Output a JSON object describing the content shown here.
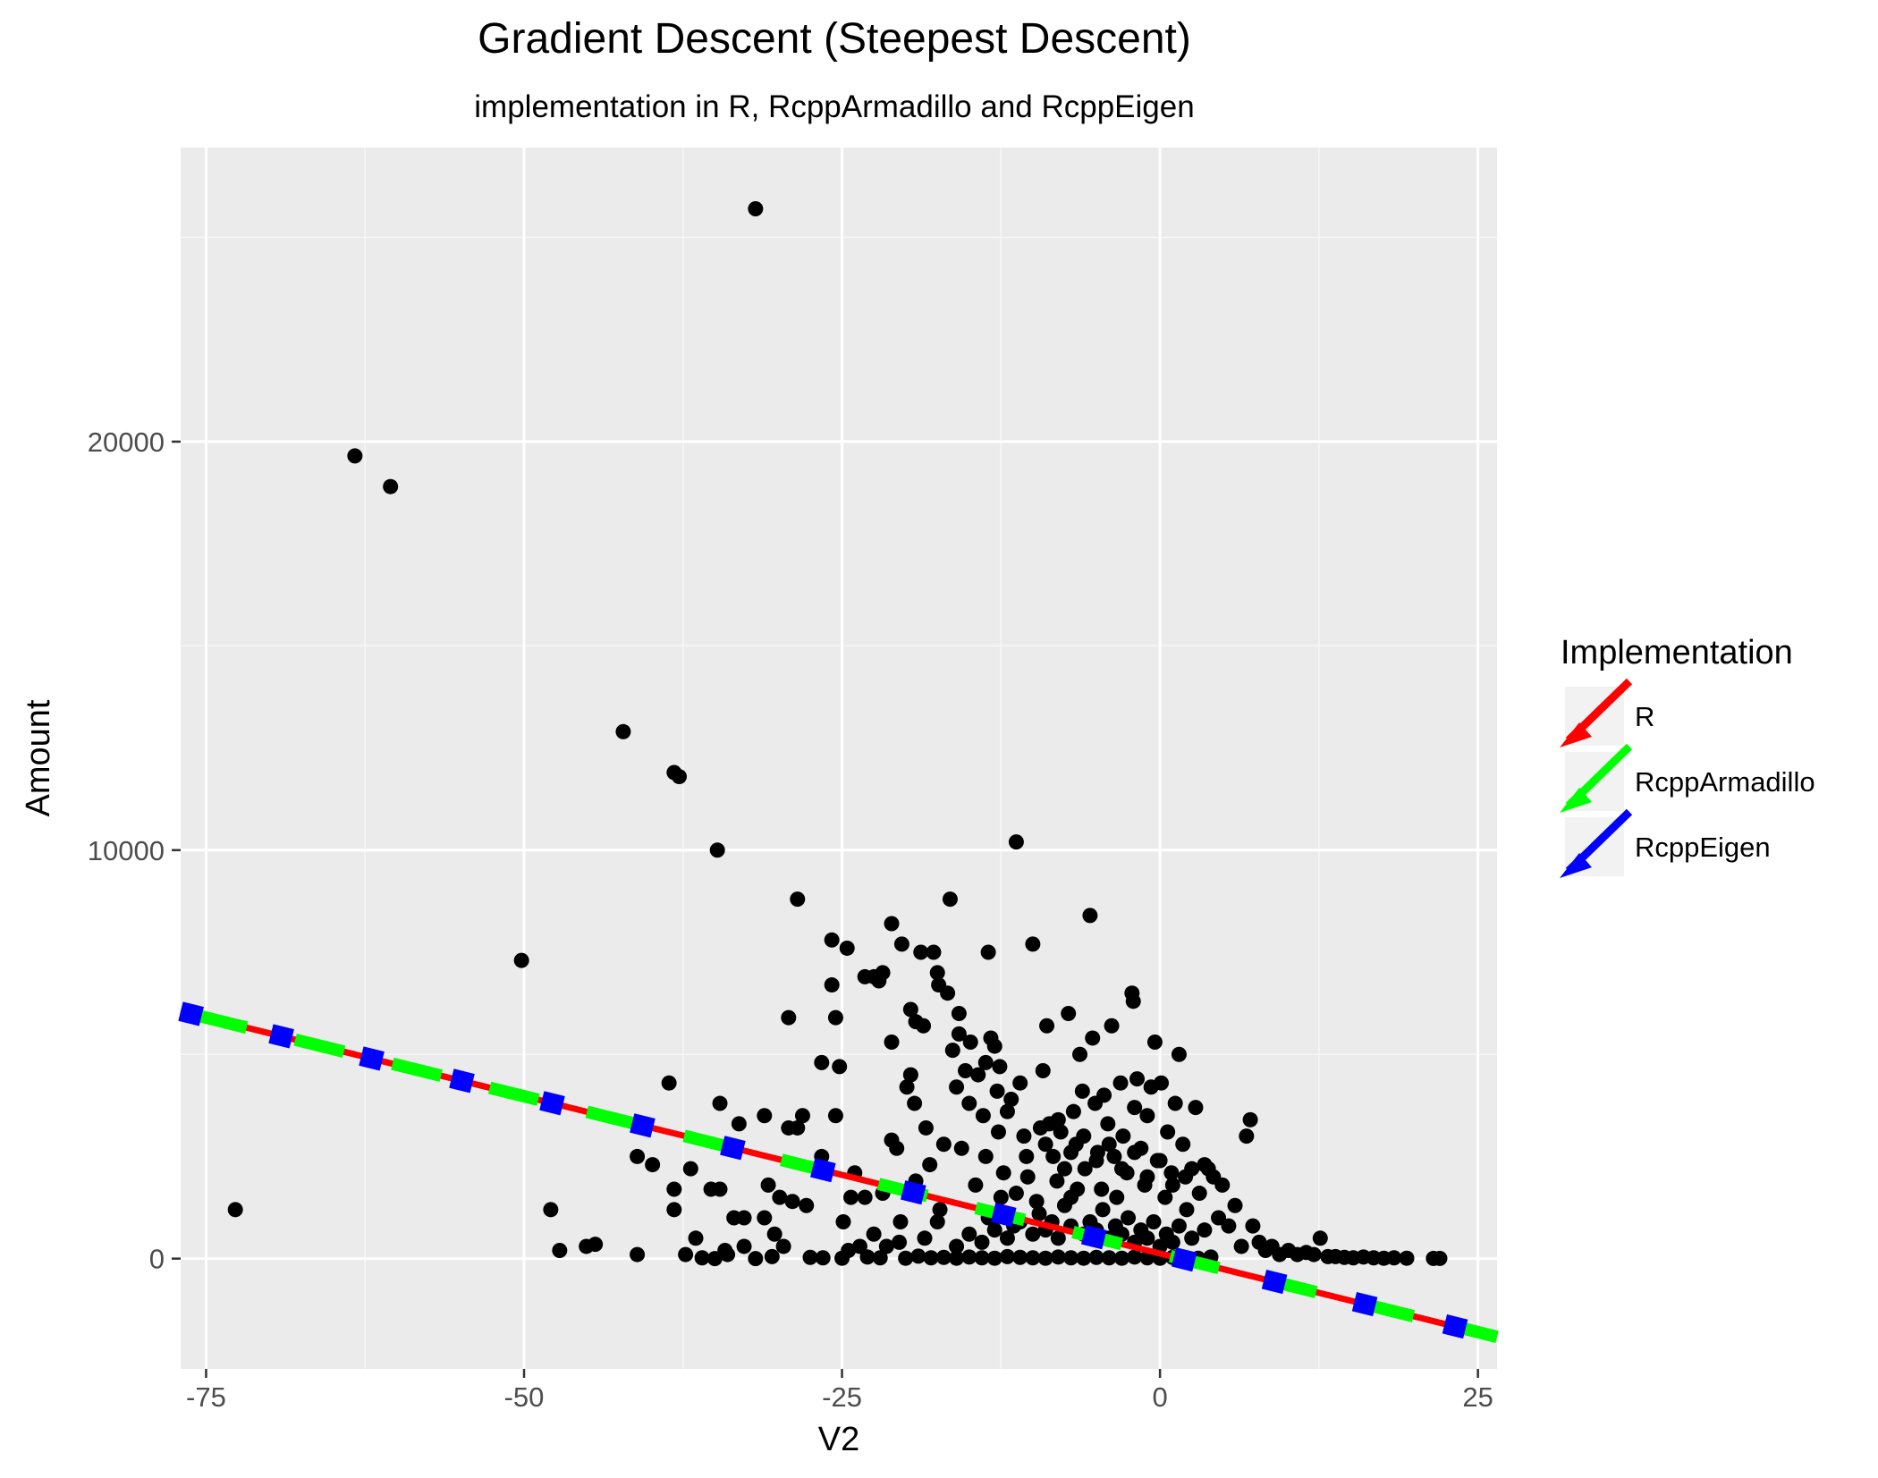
{
  "chart_data": {
    "type": "scatter",
    "title": "Gradient Descent (Steepest Descent)",
    "subtitle": "implementation in R, RcppArmadillo and RcppEigen",
    "xlabel": "V2",
    "ylabel": "Amount",
    "xlim": [
      -77,
      26.5
    ],
    "ylim": [
      -2700,
      27200
    ],
    "x_ticks": [
      -75,
      -50,
      -25,
      0,
      25
    ],
    "x_tick_labels": [
      "-75",
      "-50",
      "-25",
      "0",
      "25"
    ],
    "y_ticks": [
      0,
      10000,
      20000
    ],
    "y_tick_labels": [
      "0",
      "10000",
      "20000"
    ],
    "grid": true,
    "legend_title": "Implementation",
    "legend_position": "right",
    "lines": [
      {
        "name": "R",
        "color": "#ff0000",
        "style": "solid",
        "intercept": 125,
        "slope": -77
      },
      {
        "name": "RcppArmadillo",
        "color": "#00ff00",
        "style": "dashed",
        "intercept": 125,
        "slope": -77
      },
      {
        "name": "RcppEigen",
        "color": "#0000ff",
        "style": "dotted",
        "intercept": 125,
        "slope": -77
      }
    ],
    "points": [
      [
        -31.8,
        25700
      ],
      [
        -63.3,
        19650
      ],
      [
        -60.5,
        18900
      ],
      [
        -42.2,
        12900
      ],
      [
        -38.2,
        11900
      ],
      [
        -37.8,
        11800
      ],
      [
        -34.8,
        10000
      ],
      [
        -11.3,
        10200
      ],
      [
        -50.2,
        7300
      ],
      [
        -72.7,
        1200
      ],
      [
        -47.9,
        1200
      ],
      [
        -47.2,
        200
      ],
      [
        -45.1,
        300
      ],
      [
        -44.4,
        350
      ],
      [
        -41.1,
        100
      ],
      [
        -41.1,
        2500
      ],
      [
        -39.9,
        2300
      ],
      [
        -38.6,
        4300
      ],
      [
        -38.2,
        1700
      ],
      [
        -38.2,
        1200
      ],
      [
        -37.3,
        100
      ],
      [
        -36.9,
        2200
      ],
      [
        -36.5,
        500
      ],
      [
        -35.3,
        1700
      ],
      [
        -34.6,
        1700
      ],
      [
        -34.6,
        3800
      ],
      [
        -34.2,
        200
      ],
      [
        -33.5,
        1000
      ],
      [
        -33.1,
        3300
      ],
      [
        -32.7,
        300
      ],
      [
        -32.7,
        1000
      ],
      [
        -31.8,
        0
      ],
      [
        -31.1,
        3500
      ],
      [
        -31.1,
        1000
      ],
      [
        -30.8,
        1800
      ],
      [
        -30.3,
        600
      ],
      [
        -29.9,
        1500
      ],
      [
        -29.6,
        300
      ],
      [
        -29.2,
        5900
      ],
      [
        -29.2,
        3200
      ],
      [
        -28.9,
        1400
      ],
      [
        -28.5,
        3200
      ],
      [
        -28.5,
        8800
      ],
      [
        -28.1,
        3500
      ],
      [
        -27.8,
        1300
      ],
      [
        -26.6,
        2500
      ],
      [
        -26.6,
        4800
      ],
      [
        -25.8,
        6700
      ],
      [
        -25.8,
        7800
      ],
      [
        -25.5,
        5900
      ],
      [
        -25.5,
        3500
      ],
      [
        -25.2,
        4700
      ],
      [
        -24.9,
        900
      ],
      [
        -24.6,
        7600
      ],
      [
        -24.3,
        1500
      ],
      [
        -24.0,
        2100
      ],
      [
        -23.6,
        300
      ],
      [
        -23.2,
        6900
      ],
      [
        -23.2,
        1500
      ],
      [
        -22.5,
        6900
      ],
      [
        -22.1,
        6800
      ],
      [
        -21.8,
        7000
      ],
      [
        -21.8,
        1600
      ],
      [
        -21.1,
        8200
      ],
      [
        -21.1,
        5300
      ],
      [
        -21.1,
        2900
      ],
      [
        -20.7,
        2700
      ],
      [
        -20.4,
        900
      ],
      [
        -20.3,
        7700
      ],
      [
        -19.9,
        4200
      ],
      [
        -19.6,
        6100
      ],
      [
        -19.6,
        4500
      ],
      [
        -19.3,
        3800
      ],
      [
        -19.2,
        5800
      ],
      [
        -19.2,
        1900
      ],
      [
        -18.8,
        7500
      ],
      [
        -18.6,
        5700
      ],
      [
        -18.4,
        3200
      ],
      [
        -18.1,
        2300
      ],
      [
        -17.8,
        7500
      ],
      [
        -17.5,
        7000
      ],
      [
        -17.4,
        6700
      ],
      [
        -17.3,
        1200
      ],
      [
        -17.0,
        2800
      ],
      [
        -16.7,
        6500
      ],
      [
        -16.5,
        8800
      ],
      [
        -16.3,
        5100
      ],
      [
        -16.0,
        4200
      ],
      [
        -15.8,
        6000
      ],
      [
        -15.8,
        5500
      ],
      [
        -15.6,
        2700
      ],
      [
        -15.3,
        4600
      ],
      [
        -15.0,
        3800
      ],
      [
        -14.9,
        5300
      ],
      [
        -14.5,
        1800
      ],
      [
        -14.3,
        4500
      ],
      [
        -13.9,
        3500
      ],
      [
        -13.7,
        4800
      ],
      [
        -13.7,
        2500
      ],
      [
        -13.5,
        7500
      ],
      [
        -13.3,
        5400
      ],
      [
        -13.0,
        5200
      ],
      [
        -12.8,
        4100
      ],
      [
        -12.7,
        3100
      ],
      [
        -12.6,
        4700
      ],
      [
        -12.3,
        2100
      ],
      [
        -12.0,
        3600
      ],
      [
        -11.7,
        3900
      ],
      [
        -11.3,
        1600
      ],
      [
        -11.0,
        4300
      ],
      [
        -10.7,
        3000
      ],
      [
        -10.4,
        2000
      ],
      [
        -10.0,
        7700
      ],
      [
        -9.7,
        1400
      ],
      [
        -9.4,
        3200
      ],
      [
        -9.2,
        4600
      ],
      [
        -8.9,
        5700
      ],
      [
        -8.7,
        3300
      ],
      [
        -8.4,
        2500
      ],
      [
        -8.1,
        1900
      ],
      [
        -7.8,
        3100
      ],
      [
        -7.5,
        2200
      ],
      [
        -7.2,
        6000
      ],
      [
        -7.0,
        1500
      ],
      [
        -6.8,
        3600
      ],
      [
        -6.6,
        2800
      ],
      [
        -6.3,
        5000
      ],
      [
        -6.1,
        4100
      ],
      [
        -5.9,
        2200
      ],
      [
        -5.5,
        8400
      ],
      [
        -5.3,
        5400
      ],
      [
        -5.1,
        3800
      ],
      [
        -4.9,
        2600
      ],
      [
        -4.6,
        1700
      ],
      [
        -4.4,
        4000
      ],
      [
        -4.1,
        3300
      ],
      [
        -3.8,
        5700
      ],
      [
        -3.6,
        2500
      ],
      [
        -3.4,
        1500
      ],
      [
        -3.1,
        4300
      ],
      [
        -2.9,
        3000
      ],
      [
        -2.6,
        2100
      ],
      [
        -2.2,
        6500
      ],
      [
        -2.1,
        6300
      ],
      [
        -2.0,
        3700
      ],
      [
        -1.8,
        4400
      ],
      [
        -1.5,
        2700
      ],
      [
        -1.2,
        1800
      ],
      [
        -1.0,
        3500
      ],
      [
        -0.7,
        4200
      ],
      [
        -0.4,
        5300
      ],
      [
        -0.2,
        2400
      ],
      [
        0.1,
        4300
      ],
      [
        0.4,
        1500
      ],
      [
        0.6,
        3100
      ],
      [
        0.9,
        2100
      ],
      [
        1.2,
        3800
      ],
      [
        1.5,
        5000
      ],
      [
        1.8,
        2800
      ],
      [
        2.1,
        1200
      ],
      [
        2.5,
        2200
      ],
      [
        2.8,
        3700
      ],
      [
        3.1,
        1600
      ],
      [
        3.5,
        2300
      ],
      [
        3.8,
        2200
      ],
      [
        4.2,
        2000
      ],
      [
        4.6,
        1000
      ],
      [
        4.9,
        1800
      ],
      [
        5.4,
        800
      ],
      [
        5.9,
        1300
      ],
      [
        6.4,
        300
      ],
      [
        6.8,
        3000
      ],
      [
        7.1,
        3400
      ],
      [
        7.3,
        800
      ],
      [
        7.8,
        400
      ],
      [
        8.3,
        200
      ],
      [
        8.8,
        300
      ],
      [
        9.4,
        100
      ],
      [
        10.1,
        200
      ],
      [
        10.8,
        100
      ],
      [
        11.5,
        150
      ],
      [
        12.1,
        100
      ],
      [
        12.6,
        500
      ],
      [
        13.2,
        50
      ],
      [
        13.8,
        50
      ],
      [
        14.5,
        30
      ],
      [
        15.2,
        20
      ],
      [
        16.0,
        40
      ],
      [
        16.8,
        20
      ],
      [
        17.6,
        10
      ],
      [
        18.4,
        20
      ],
      [
        19.4,
        10
      ],
      [
        21.5,
        5
      ],
      [
        22.0,
        5
      ],
      [
        -34.0,
        100
      ],
      [
        -35.0,
        0
      ],
      [
        -36.0,
        20
      ],
      [
        -30.5,
        50
      ],
      [
        -27.5,
        30
      ],
      [
        -26.5,
        20
      ],
      [
        -25.0,
        10
      ],
      [
        -23.0,
        40
      ],
      [
        -22.0,
        20
      ],
      [
        -20.0,
        10
      ],
      [
        -19.0,
        60
      ],
      [
        -18.0,
        20
      ],
      [
        -17.0,
        30
      ],
      [
        -16.0,
        10
      ],
      [
        -15.0,
        40
      ],
      [
        -14.0,
        20
      ],
      [
        -13.0,
        10
      ],
      [
        -12.0,
        50
      ],
      [
        -11.0,
        30
      ],
      [
        -10.0,
        20
      ],
      [
        -9.0,
        10
      ],
      [
        -8.0,
        40
      ],
      [
        -7.0,
        20
      ],
      [
        -6.0,
        10
      ],
      [
        -5.0,
        30
      ],
      [
        -4.0,
        20
      ],
      [
        -3.0,
        10
      ],
      [
        -2.0,
        40
      ],
      [
        -1.0,
        20
      ],
      [
        0.0,
        10
      ],
      [
        1.0,
        30
      ],
      [
        2.0,
        20
      ],
      [
        3.0,
        10
      ],
      [
        4.0,
        40
      ],
      [
        -13.5,
        1000
      ],
      [
        -12.5,
        1500
      ],
      [
        -11.5,
        800
      ],
      [
        -10.5,
        2500
      ],
      [
        -9.5,
        1100
      ],
      [
        -8.5,
        900
      ],
      [
        -7.5,
        1300
      ],
      [
        -6.5,
        1700
      ],
      [
        -5.5,
        900
      ],
      [
        -4.5,
        1200
      ],
      [
        -3.5,
        800
      ],
      [
        -2.5,
        1000
      ],
      [
        -1.5,
        700
      ],
      [
        -0.5,
        900
      ],
      [
        0.5,
        600
      ],
      [
        1.5,
        800
      ],
      [
        2.5,
        500
      ],
      [
        3.5,
        700
      ],
      [
        -9.0,
        2800
      ],
      [
        -8.0,
        3400
      ],
      [
        -7.0,
        2600
      ],
      [
        -6.0,
        3000
      ],
      [
        -5.0,
        2400
      ],
      [
        -4.0,
        2800
      ],
      [
        -3.0,
        2200
      ],
      [
        -2.0,
        2600
      ],
      [
        -1.0,
        2000
      ],
      [
        0.0,
        2400
      ],
      [
        1.0,
        1800
      ],
      [
        2.0,
        2000
      ],
      [
        -16.0,
        300
      ],
      [
        -15.0,
        600
      ],
      [
        -14.0,
        400
      ],
      [
        -13.0,
        700
      ],
      [
        -12.0,
        500
      ],
      [
        -11.0,
        900
      ],
      [
        -10.0,
        600
      ],
      [
        -9.0,
        700
      ],
      [
        -8.0,
        500
      ],
      [
        -7.0,
        800
      ],
      [
        -6.0,
        600
      ],
      [
        -5.0,
        700
      ],
      [
        -4.0,
        500
      ],
      [
        -3.0,
        600
      ],
      [
        -2.0,
        400
      ],
      [
        -1.0,
        500
      ],
      [
        0.0,
        300
      ],
      [
        1.0,
        400
      ],
      [
        -18.5,
        500
      ],
      [
        -17.5,
        900
      ],
      [
        -20.5,
        400
      ],
      [
        -21.5,
        300
      ],
      [
        -22.5,
        600
      ],
      [
        -24.5,
        200
      ]
    ]
  }
}
